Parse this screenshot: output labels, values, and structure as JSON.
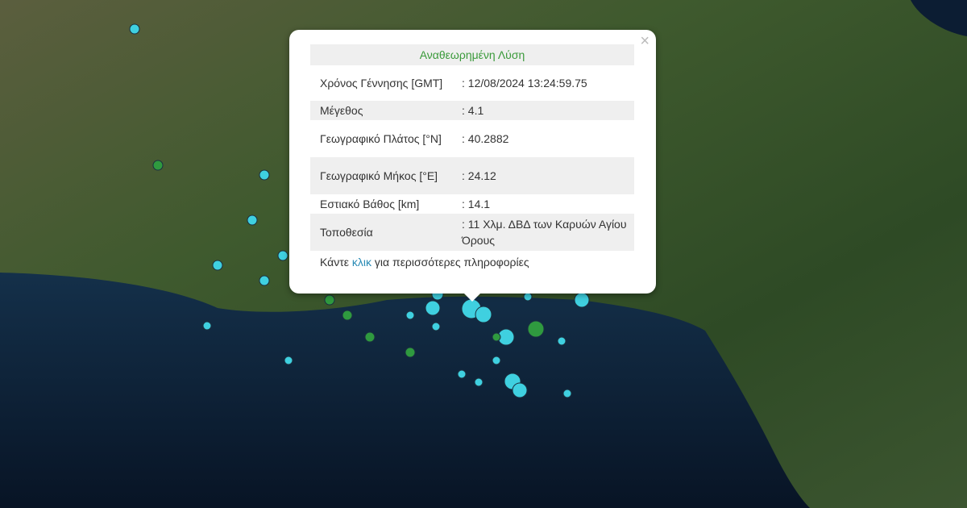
{
  "colors": {
    "marker_recent": "#3fd0e0",
    "marker_older": "#2f9a3f",
    "title_green": "#3a9a3a",
    "link": "#2a8bb5"
  },
  "popup": {
    "title": "Αναθεωρημένη Λύση",
    "close_icon": "×",
    "rows": [
      {
        "label": "Χρόνος Γέννησης [GMT]",
        "value": ": 12/08/2024 13:24:59.75"
      },
      {
        "label": "Μέγεθος",
        "value": ": 4.1"
      },
      {
        "label": "Γεωγραφικό Πλάτος [°N]",
        "value": ": 40.2882"
      },
      {
        "label": "Γεωγραφικό Μήκος [°E]",
        "value": ": 24.12"
      },
      {
        "label": "Εστιακό Βάθος [km]",
        "value": ": 14.1"
      },
      {
        "label": "Τοποθεσία",
        "value": ": 11 Χλμ. ΔΒΔ των Καρυών Αγίου Όρους"
      }
    ],
    "more_prefix": "Κάντε ",
    "more_link": "κλικ",
    "more_suffix": " για περισσότερες πληροφορίες"
  }
}
